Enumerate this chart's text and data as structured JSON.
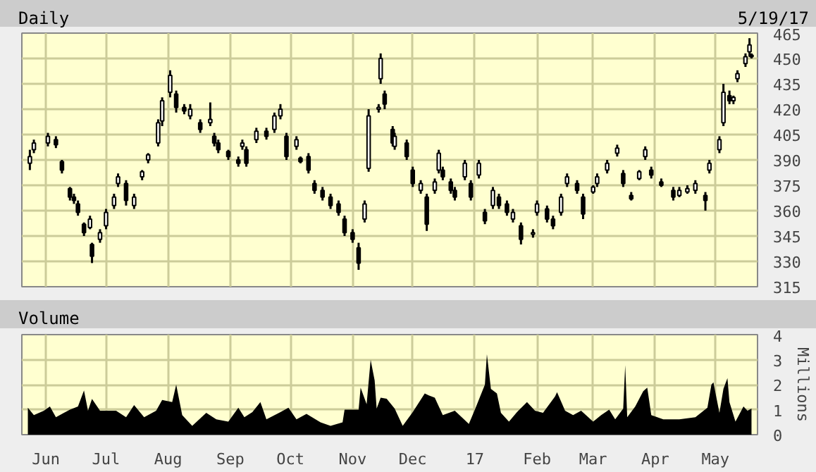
{
  "chart_data": [
    {
      "type": "candlestick",
      "title": "Daily",
      "annotations": [
        "5/19/17"
      ],
      "xlim": [
        "2016-05-20",
        "2017-05-22"
      ],
      "xticks": [
        {
          "value": "2016-06-01",
          "label": null
        },
        {
          "value": "2016-07-01",
          "label": null
        },
        {
          "value": "2016-08-01",
          "label": null
        },
        {
          "value": "2016-09-01",
          "label": null
        },
        {
          "value": "2016-10-01",
          "label": null
        },
        {
          "value": "2016-11-01",
          "label": null
        },
        {
          "value": "2016-12-01",
          "label": null
        },
        {
          "value": "2017-01-01",
          "label": null
        },
        {
          "value": "2017-02-01",
          "label": null
        },
        {
          "value": "2017-03-01",
          "label": null
        },
        {
          "value": "2017-04-01",
          "label": null
        },
        {
          "value": "2017-05-01",
          "label": null
        }
      ],
      "ylim": [
        315,
        465
      ],
      "yticks": [
        315,
        330,
        345,
        360,
        375,
        390,
        405,
        420,
        435,
        450,
        465
      ],
      "grid": true,
      "tick_labels": "y",
      "x": [
        "2016-05-24",
        "2016-05-26",
        "2016-06-02",
        "2016-06-06",
        "2016-06-09",
        "2016-06-13",
        "2016-06-15",
        "2016-06-17",
        "2016-06-20",
        "2016-06-23",
        "2016-06-24",
        "2016-06-28",
        "2016-07-01",
        "2016-07-05",
        "2016-07-07",
        "2016-07-11",
        "2016-07-15",
        "2016-07-19",
        "2016-07-22",
        "2016-07-27",
        "2016-07-29",
        "2016-08-02",
        "2016-08-05",
        "2016-08-09",
        "2016-08-12",
        "2016-08-17",
        "2016-08-22",
        "2016-08-24",
        "2016-08-26",
        "2016-08-31",
        "2016-09-05",
        "2016-09-07",
        "2016-09-09",
        "2016-09-14",
        "2016-09-19",
        "2016-09-23",
        "2016-09-26",
        "2016-09-29",
        "2016-10-04",
        "2016-10-06",
        "2016-10-10",
        "2016-10-13",
        "2016-10-17",
        "2016-10-21",
        "2016-10-25",
        "2016-10-28",
        "2016-11-01",
        "2016-11-04",
        "2016-11-07",
        "2016-11-09",
        "2016-11-14",
        "2016-11-15",
        "2016-11-17",
        "2016-11-21",
        "2016-11-22",
        "2016-11-28",
        "2016-12-01",
        "2016-12-05",
        "2016-12-08",
        "2016-12-12",
        "2016-12-14",
        "2016-12-16",
        "2016-12-20",
        "2016-12-22",
        "2016-12-27",
        "2016-12-30",
        "2017-01-03",
        "2017-01-06",
        "2017-01-10",
        "2017-01-13",
        "2017-01-17",
        "2017-01-20",
        "2017-01-24",
        "2017-01-30",
        "2017-02-01",
        "2017-02-06",
        "2017-02-09",
        "2017-02-13",
        "2017-02-16",
        "2017-02-21",
        "2017-02-24",
        "2017-03-01",
        "2017-03-03",
        "2017-03-08",
        "2017-03-13",
        "2017-03-16",
        "2017-03-20",
        "2017-03-24",
        "2017-03-27",
        "2017-03-30",
        "2017-04-04",
        "2017-04-10",
        "2017-04-13",
        "2017-04-17",
        "2017-04-21",
        "2017-04-26",
        "2017-04-28",
        "2017-05-03",
        "2017-05-05",
        "2017-05-08",
        "2017-05-10",
        "2017-05-12",
        "2017-05-16",
        "2017-05-18",
        "2017-05-19"
      ],
      "ohlc": [
        [
          388,
          396,
          384,
          392
        ],
        [
          396,
          402,
          394,
          400
        ],
        [
          400,
          406,
          398,
          404
        ],
        [
          402,
          404,
          397,
          399
        ],
        [
          389,
          390,
          382,
          384
        ],
        [
          373,
          374,
          366,
          368
        ],
        [
          368,
          370,
          364,
          366
        ],
        [
          364,
          366,
          357,
          359
        ],
        [
          352,
          353,
          345,
          347
        ],
        [
          350,
          357,
          349,
          355
        ],
        [
          340,
          341,
          329,
          333
        ],
        [
          343,
          349,
          341,
          347
        ],
        [
          351,
          361,
          349,
          359
        ],
        [
          363,
          370,
          361,
          368
        ],
        [
          376,
          382,
          374,
          380
        ],
        [
          376,
          378,
          363,
          366
        ],
        [
          363,
          370,
          361,
          368
        ],
        [
          380,
          384,
          378,
          383
        ],
        [
          390,
          394,
          388,
          393
        ],
        [
          400,
          414,
          398,
          412
        ],
        [
          413,
          427,
          410,
          425
        ],
        [
          430,
          443,
          427,
          440
        ],
        [
          429,
          431,
          418,
          421
        ],
        [
          421,
          423,
          417,
          419
        ],
        [
          416,
          423,
          414,
          420
        ],
        [
          412,
          414,
          406,
          408
        ],
        [
          412,
          424,
          410,
          414
        ],
        [
          404,
          406,
          398,
          400
        ],
        [
          400,
          402,
          394,
          396
        ],
        [
          395,
          396,
          390,
          392
        ],
        [
          390,
          392,
          386,
          388
        ],
        [
          398,
          402,
          396,
          400
        ],
        [
          396,
          398,
          386,
          388
        ],
        [
          402,
          409,
          400,
          407
        ],
        [
          407,
          409,
          402,
          404
        ],
        [
          408,
          418,
          406,
          416
        ],
        [
          416,
          423,
          414,
          420
        ],
        [
          404,
          406,
          390,
          392
        ],
        [
          398,
          404,
          396,
          402
        ],
        [
          391,
          392,
          388,
          389
        ],
        [
          392,
          394,
          382,
          384
        ],
        [
          376,
          378,
          370,
          372
        ],
        [
          372,
          374,
          366,
          368
        ],
        [
          368,
          370,
          361,
          363
        ],
        [
          364,
          366,
          357,
          359
        ],
        [
          355,
          357,
          345,
          347
        ],
        [
          347,
          349,
          341,
          343
        ],
        [
          338,
          341,
          325,
          329
        ],
        [
          355,
          366,
          353,
          364
        ],
        [
          385,
          420,
          383,
          416
        ],
        [
          420,
          423,
          418,
          421
        ],
        [
          438,
          453,
          435,
          450
        ],
        [
          429,
          431,
          420,
          423
        ],
        [
          408,
          410,
          398,
          400
        ],
        [
          398,
          406,
          396,
          404
        ],
        [
          400,
          402,
          390,
          392
        ],
        [
          384,
          386,
          374,
          376
        ],
        [
          372,
          378,
          370,
          376
        ],
        [
          368,
          370,
          348,
          352
        ],
        [
          372,
          379,
          370,
          377
        ],
        [
          384,
          396,
          382,
          394
        ],
        [
          384,
          386,
          378,
          380
        ],
        [
          377,
          379,
          370,
          372
        ],
        [
          372,
          374,
          366,
          368
        ],
        [
          380,
          390,
          378,
          388
        ],
        [
          376,
          378,
          366,
          368
        ],
        [
          381,
          390,
          379,
          388
        ],
        [
          359,
          361,
          352,
          354
        ],
        [
          363,
          374,
          361,
          372
        ],
        [
          368,
          370,
          361,
          363
        ],
        [
          364,
          366,
          357,
          359
        ],
        [
          355,
          361,
          353,
          359
        ],
        [
          351,
          353,
          340,
          343
        ],
        [
          346,
          349,
          344,
          347
        ],
        [
          359,
          366,
          357,
          364
        ],
        [
          361,
          363,
          353,
          355
        ],
        [
          355,
          357,
          349,
          351
        ],
        [
          359,
          370,
          357,
          368
        ],
        [
          376,
          382,
          374,
          380
        ],
        [
          376,
          378,
          370,
          372
        ],
        [
          368,
          370,
          355,
          358
        ],
        [
          371,
          375,
          370,
          374
        ],
        [
          376,
          382,
          374,
          380
        ],
        [
          384,
          390,
          382,
          388
        ],
        [
          394,
          399,
          392,
          397
        ],
        [
          382,
          384,
          374,
          376
        ],
        [
          369,
          371,
          366,
          367
        ],
        [
          379,
          384,
          378,
          383
        ],
        [
          392,
          398,
          390,
          396
        ],
        [
          384,
          386,
          379,
          381
        ],
        [
          377,
          379,
          374,
          375
        ],
        [
          372,
          374,
          366,
          368
        ],
        [
          369,
          374,
          368,
          372
        ],
        [
          371,
          375,
          370,
          373
        ],
        [
          372,
          378,
          370,
          376
        ],
        [
          369,
          371,
          360,
          366
        ],
        [
          384,
          390,
          382,
          388
        ],
        [
          396,
          404,
          394,
          402
        ],
        [
          412,
          435,
          410,
          430
        ],
        [
          428,
          431,
          423,
          425
        ],
        [
          425,
          428,
          423,
          427
        ],
        [
          438,
          443,
          436,
          441
        ],
        [
          447,
          453,
          445,
          451
        ],
        [
          454,
          462,
          451,
          458
        ],
        [
          452,
          453,
          450,
          451
        ]
      ]
    },
    {
      "type": "area",
      "title": "Volume",
      "ylabel": "Millions",
      "xlim": [
        "2016-05-20",
        "2017-05-22"
      ],
      "xticks": [
        {
          "value": "2016-06-01",
          "label": "Jun"
        },
        {
          "value": "2016-07-01",
          "label": "Jul"
        },
        {
          "value": "2016-08-01",
          "label": "Aug"
        },
        {
          "value": "2016-09-01",
          "label": "Sep"
        },
        {
          "value": "2016-10-01",
          "label": "Oct"
        },
        {
          "value": "2016-11-01",
          "label": "Nov"
        },
        {
          "value": "2016-12-01",
          "label": "Dec"
        },
        {
          "value": "2017-01-01",
          "label": "17"
        },
        {
          "value": "2017-02-01",
          "label": "Feb"
        },
        {
          "value": "2017-03-01",
          "label": "Mar"
        },
        {
          "value": "2017-04-01",
          "label": "Apr"
        },
        {
          "value": "2017-05-01",
          "label": "May"
        }
      ],
      "ylim": [
        0,
        4
      ],
      "yticks": [
        0,
        1,
        2,
        3,
        4
      ],
      "grid": true,
      "x": [
        "2016-05-23",
        "2016-05-26",
        "2016-05-31",
        "2016-06-03",
        "2016-06-06",
        "2016-06-10",
        "2016-06-13",
        "2016-06-17",
        "2016-06-20",
        "2016-06-22",
        "2016-06-24",
        "2016-06-28",
        "2016-07-06",
        "2016-07-11",
        "2016-07-15",
        "2016-07-20",
        "2016-07-26",
        "2016-07-29",
        "2016-08-03",
        "2016-08-05",
        "2016-08-08",
        "2016-08-13",
        "2016-08-20",
        "2016-08-25",
        "2016-08-31",
        "2016-09-05",
        "2016-09-08",
        "2016-09-12",
        "2016-09-16",
        "2016-09-19",
        "2016-09-26",
        "2016-09-30",
        "2016-10-04",
        "2016-10-09",
        "2016-10-16",
        "2016-10-21",
        "2016-10-27",
        "2016-10-28",
        "2016-11-04",
        "2016-11-05",
        "2016-11-08",
        "2016-11-10",
        "2016-11-12",
        "2016-11-13",
        "2016-11-15",
        "2016-11-18",
        "2016-11-22",
        "2016-11-26",
        "2016-12-01",
        "2016-12-07",
        "2016-12-09",
        "2016-12-12",
        "2016-12-16",
        "2016-12-22",
        "2016-12-29",
        "2017-01-01",
        "2017-01-06",
        "2017-01-07",
        "2017-01-09",
        "2017-01-12",
        "2017-01-14",
        "2017-01-18",
        "2017-01-22",
        "2017-01-27",
        "2017-01-31",
        "2017-02-04",
        "2017-02-10",
        "2017-02-11",
        "2017-02-15",
        "2017-02-19",
        "2017-02-23",
        "2017-03-01",
        "2017-03-05",
        "2017-03-09",
        "2017-03-12",
        "2017-03-16",
        "2017-03-17",
        "2017-03-18",
        "2017-03-22",
        "2017-03-26",
        "2017-03-28",
        "2017-03-30",
        "2017-04-05",
        "2017-04-13",
        "2017-04-21",
        "2017-04-27",
        "2017-04-29",
        "2017-04-30",
        "2017-05-03",
        "2017-05-05",
        "2017-05-07",
        "2017-05-08",
        "2017-05-11",
        "2017-05-15",
        "2017-05-17",
        "2017-05-19"
      ],
      "series": [
        {
          "color": "#000000",
          "values": [
            1.08,
            0.78,
            0.96,
            1.13,
            0.7,
            0.87,
            1.0,
            1.13,
            1.77,
            0.96,
            1.43,
            0.96,
            0.96,
            0.7,
            1.18,
            0.7,
            0.96,
            1.39,
            1.3,
            2.0,
            0.78,
            0.35,
            0.87,
            0.61,
            0.52,
            1.08,
            0.7,
            0.9,
            1.3,
            0.61,
            0.9,
            1.08,
            0.61,
            0.83,
            0.49,
            0.35,
            0.49,
            1.0,
            1.0,
            1.88,
            1.22,
            2.99,
            2.17,
            1.04,
            1.48,
            1.44,
            1.04,
            0.35,
            0.9,
            1.65,
            1.57,
            1.48,
            0.78,
            0.96,
            0.43,
            1.0,
            2.0,
            3.22,
            1.83,
            1.65,
            0.87,
            0.52,
            0.9,
            1.3,
            0.96,
            0.87,
            1.53,
            1.7,
            0.96,
            0.78,
            0.96,
            0.52,
            0.78,
            1.0,
            0.61,
            1.04,
            2.78,
            0.7,
            1.13,
            1.74,
            1.88,
            0.78,
            0.61,
            0.61,
            0.7,
            1.08,
            2.0,
            2.09,
            0.87,
            1.83,
            2.26,
            1.3,
            0.52,
            1.13,
            0.96,
            1.04
          ]
        }
      ]
    }
  ]
}
